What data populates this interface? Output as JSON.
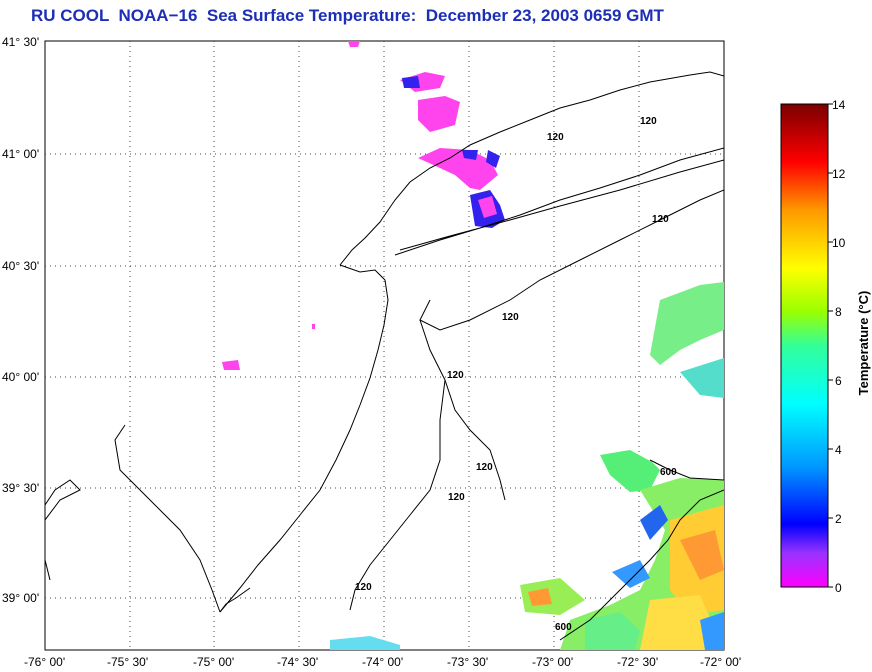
{
  "title": {
    "text": "RU COOL  NOAA−16  Sea Surface Temperature:  December 23, 2003 0659 GMT"
  },
  "map": {
    "lat_labels": [
      "41° 30'",
      "41° 00'",
      "40° 30'",
      "40° 00'",
      "39° 30'",
      "39° 00'"
    ],
    "lon_labels": [
      "-76° 00'",
      "-75° 30'",
      "-75° 00'",
      "-74° 30'",
      "-74° 00'",
      "-73° 30'",
      "-73° 00'",
      "-72° 30'",
      "-72° 00'"
    ],
    "isobath_labels": [
      "120",
      "120",
      "120",
      "120",
      "120",
      "120",
      "120",
      "120",
      "600",
      "600"
    ],
    "colors": {
      "land_line": "#000000",
      "grid": "#555555",
      "sst_cold": "#ff33ff",
      "sst_blue": "#2233ee",
      "sst_green": "#66ee66",
      "sst_orange": "#ff9933"
    }
  },
  "colorbar": {
    "title": "Temperature (°C)",
    "ticks": [
      "14",
      "12",
      "10",
      "8",
      "6",
      "4",
      "2",
      "0"
    ],
    "range": [
      0,
      14
    ]
  }
}
